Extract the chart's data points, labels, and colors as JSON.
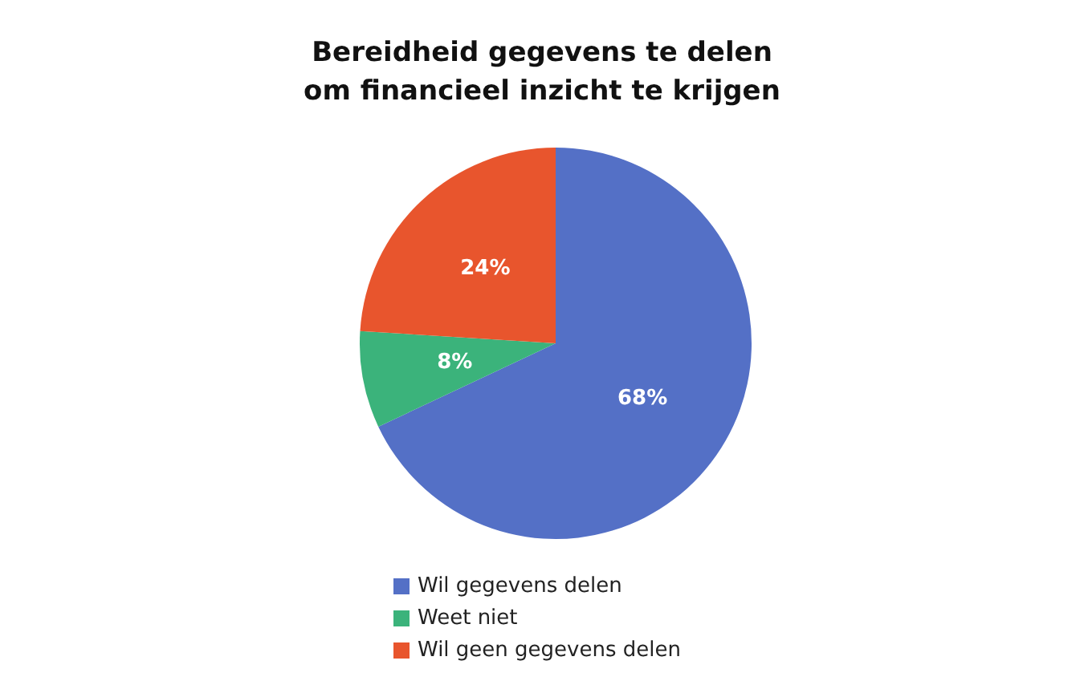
{
  "chart_data": {
    "type": "pie",
    "title": "Bereidheid gegevens te delen\nom financieel inzicht te krijgen",
    "categories": [
      "Wil gegevens delen",
      "Weet niet",
      "Wil geen gegevens delen"
    ],
    "values": [
      68,
      8,
      24
    ],
    "colors": [
      "#5470c6",
      "#3bb37b",
      "#e8552d"
    ],
    "value_labels": [
      "68%",
      "8%",
      "24%"
    ],
    "legend": "bottom"
  }
}
